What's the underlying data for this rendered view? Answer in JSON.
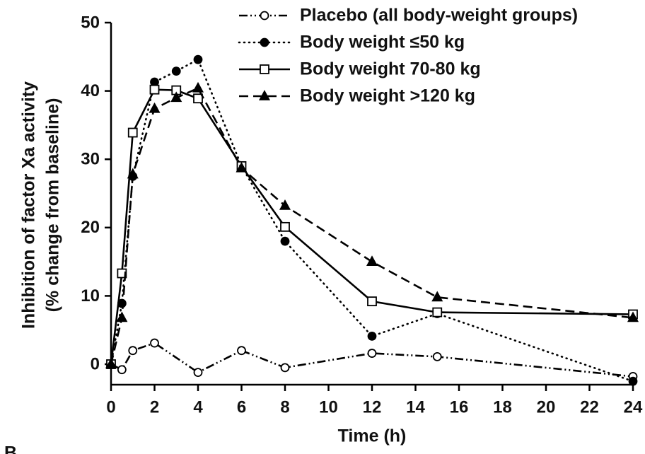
{
  "chart_data": {
    "type": "line",
    "x_label": "Time (h)",
    "y_label": [
      "Inhibition of factor Xa activity",
      "(% change from baseline)"
    ],
    "panel_label": "B",
    "xlim": [
      0,
      24
    ],
    "xticks": [
      0,
      2,
      4,
      6,
      8,
      10,
      12,
      14,
      16,
      18,
      20,
      22,
      24
    ],
    "ylim": [
      -3,
      50
    ],
    "yticks": [
      0,
      10,
      20,
      30,
      40,
      50
    ],
    "grid": false,
    "legend": "top-right",
    "series": [
      {
        "name": "Placebo (all body-weight groups)",
        "color": "#000000",
        "line_style": "dashdotdot",
        "marker": "circle-open",
        "x": [
          0,
          0.5,
          1,
          2,
          4,
          6,
          8,
          12,
          15,
          24
        ],
        "values": [
          0,
          -0.8,
          2,
          3.1,
          -1.2,
          2,
          -0.5,
          1.6,
          1.1,
          -1.8
        ]
      },
      {
        "name": "Body weight ≤50 kg",
        "color": "#000000",
        "line_style": "dotted",
        "marker": "circle-filled",
        "x": [
          0,
          0.5,
          1,
          2,
          3,
          4,
          6,
          8,
          12,
          15,
          24
        ],
        "values": [
          0,
          8.9,
          27.5,
          41.3,
          42.9,
          44.6,
          29,
          18,
          4.1,
          7.4,
          -2.5
        ]
      },
      {
        "name": "Body weight 70-80 kg",
        "color": "#000000",
        "line_style": "solid",
        "marker": "square-open",
        "x": [
          0,
          0.5,
          1,
          2,
          3,
          4,
          6,
          8,
          12,
          15,
          24
        ],
        "values": [
          0,
          13.3,
          33.9,
          40.2,
          40.1,
          38.9,
          29,
          20.1,
          9.2,
          7.6,
          7.3
        ]
      },
      {
        "name": "Body weight >120 kg",
        "color": "#000000",
        "line_style": "dashed",
        "marker": "triangle-filled",
        "x": [
          0,
          0.5,
          1,
          2,
          3,
          4,
          6,
          8,
          12,
          15,
          24
        ],
        "values": [
          0,
          6.8,
          27.8,
          37.4,
          39,
          40.4,
          28.7,
          23.2,
          15,
          9.8,
          6.8
        ]
      }
    ]
  }
}
